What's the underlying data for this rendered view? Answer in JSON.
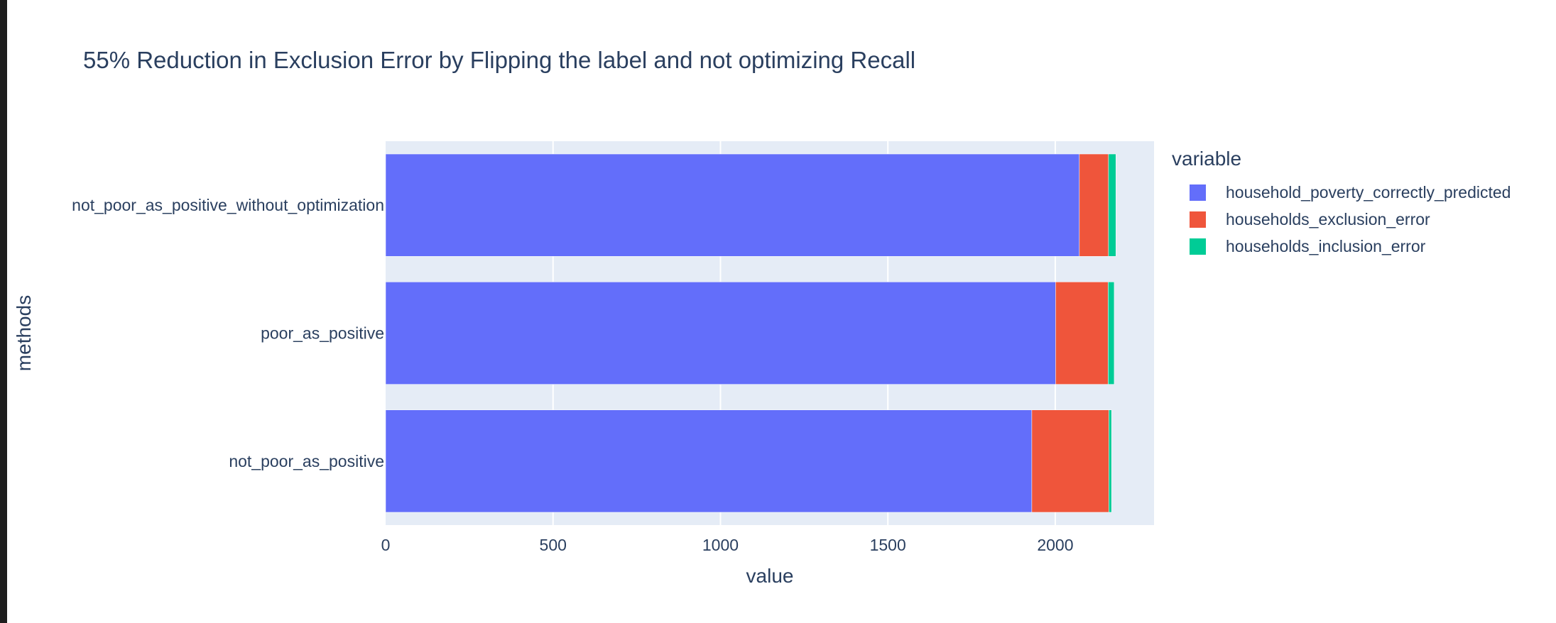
{
  "chart_data": {
    "type": "bar",
    "orientation": "horizontal",
    "barmode": "stack",
    "title": "55% Reduction in Exclusion Error by Flipping the label and not optimizing Recall",
    "xlabel": "value",
    "ylabel": "methods",
    "xlim": [
      0,
      2295
    ],
    "xticks": [
      0,
      500,
      1000,
      1500,
      2000
    ],
    "grid": true,
    "legend_title": "variable",
    "legend_position": "right",
    "categories": [
      "not_poor_as_positive_without_optimization",
      "poor_as_positive",
      "not_poor_as_positive"
    ],
    "series": [
      {
        "name": "household_poverty_correctly_predicted",
        "color": "#636efa",
        "values": [
          2072,
          2001,
          1930
        ]
      },
      {
        "name": "households_exclusion_error",
        "color": "#ef553b",
        "values": [
          87,
          157,
          230
        ]
      },
      {
        "name": "households_inclusion_error",
        "color": "#00cc96",
        "values": [
          22,
          18,
          8
        ]
      }
    ]
  }
}
